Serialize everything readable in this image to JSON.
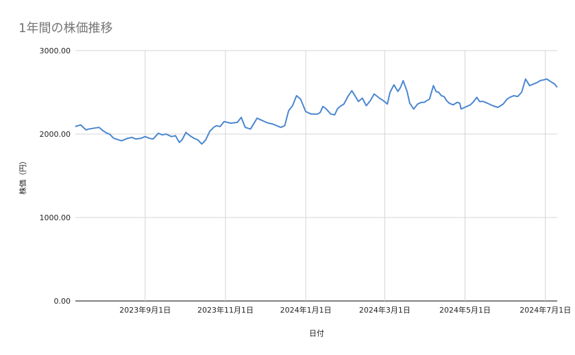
{
  "chart_data": {
    "type": "line",
    "title": "1年間の株価推移",
    "xlabel": "日付",
    "ylabel": "株価（円）",
    "ylim": [
      0,
      3000
    ],
    "yticks": [
      "0.00",
      "1000.00",
      "2000.00",
      "3000.00"
    ],
    "ytick_values": [
      0,
      1000,
      2000,
      3000
    ],
    "xlim": [
      "2023-07-10",
      "2024-07-10"
    ],
    "xticks": [
      {
        "date": "2023-09-01",
        "label": "2023年9月1日"
      },
      {
        "date": "2023-11-01",
        "label": "2023年11月1日"
      },
      {
        "date": "2024-01-01",
        "label": "2024年1月1日"
      },
      {
        "date": "2024-03-01",
        "label": "2024年3月1日"
      },
      {
        "date": "2024-05-01",
        "label": "2024年5月1日"
      },
      {
        "date": "2024-07-01",
        "label": "2024年7月1日"
      }
    ],
    "grid": true,
    "series": [
      {
        "color": "#4a86d0",
        "x": [
          "2023-07-10",
          "2023-07-14",
          "2023-07-18",
          "2023-07-20",
          "2023-07-28",
          "2023-07-31",
          "2023-08-03",
          "2023-08-05",
          "2023-08-08",
          "2023-08-14",
          "2023-08-19",
          "2023-08-22",
          "2023-08-25",
          "2023-08-29",
          "2023-09-01",
          "2023-09-04",
          "2023-09-07",
          "2023-09-11",
          "2023-09-14",
          "2023-09-17",
          "2023-09-21",
          "2023-09-24",
          "2023-09-27",
          "2023-09-29",
          "2023-10-02",
          "2023-10-05",
          "2023-10-08",
          "2023-10-11",
          "2023-10-14",
          "2023-10-17",
          "2023-10-20",
          "2023-10-23",
          "2023-10-25",
          "2023-10-28",
          "2023-10-31",
          "2023-11-05",
          "2023-11-10",
          "2023-11-13",
          "2023-11-16",
          "2023-11-20",
          "2023-11-25",
          "2023-11-28",
          "2023-12-02",
          "2023-12-04",
          "2023-12-07",
          "2023-12-10",
          "2023-12-13",
          "2023-12-16",
          "2023-12-19",
          "2023-12-22",
          "2023-12-25",
          "2023-12-28",
          "2024-01-01",
          "2024-01-05",
          "2024-01-10",
          "2024-01-12",
          "2024-01-14",
          "2024-01-16",
          "2024-01-20",
          "2024-01-23",
          "2024-01-25",
          "2024-01-27",
          "2024-01-30",
          "2024-02-02",
          "2024-02-05",
          "2024-02-07",
          "2024-02-10",
          "2024-02-13",
          "2024-02-16",
          "2024-02-19",
          "2024-02-22",
          "2024-02-26",
          "2024-02-29",
          "2024-03-03",
          "2024-03-05",
          "2024-03-08",
          "2024-03-11",
          "2024-03-13",
          "2024-03-15",
          "2024-03-18",
          "2024-03-20",
          "2024-03-23",
          "2024-03-26",
          "2024-03-29",
          "2024-03-31",
          "2024-04-02",
          "2024-04-04",
          "2024-04-07",
          "2024-04-09",
          "2024-04-11",
          "2024-04-13",
          "2024-04-15",
          "2024-04-17",
          "2024-04-19",
          "2024-04-22",
          "2024-04-25",
          "2024-04-27",
          "2024-04-28",
          "2024-05-05",
          "2024-05-07",
          "2024-05-10",
          "2024-05-12",
          "2024-05-15",
          "2024-05-18",
          "2024-05-22",
          "2024-05-26",
          "2024-05-30",
          "2024-06-02",
          "2024-06-04",
          "2024-06-07",
          "2024-06-10",
          "2024-06-13",
          "2024-06-16",
          "2024-06-19",
          "2024-06-22",
          "2024-06-25",
          "2024-06-27",
          "2024-06-30",
          "2024-07-02",
          "2024-07-04",
          "2024-07-06",
          "2024-07-08",
          "2024-07-09",
          "2024-07-10"
        ],
        "y": [
          2090,
          2110,
          2050,
          2060,
          2080,
          2040,
          2010,
          2000,
          1950,
          1920,
          1950,
          1960,
          1940,
          1950,
          1970,
          1950,
          1940,
          2010,
          1990,
          2000,
          1970,
          1980,
          1900,
          1930,
          2020,
          1980,
          1950,
          1930,
          1880,
          1930,
          2030,
          2080,
          2100,
          2090,
          2150,
          2130,
          2140,
          2200,
          2080,
          2060,
          2190,
          2170,
          2140,
          2130,
          2120,
          2100,
          2080,
          2100,
          2280,
          2340,
          2460,
          2420,
          2270,
          2240,
          2240,
          2260,
          2330,
          2310,
          2240,
          2230,
          2300,
          2330,
          2360,
          2450,
          2520,
          2470,
          2390,
          2430,
          2340,
          2400,
          2480,
          2430,
          2400,
          2360,
          2500,
          2590,
          2510,
          2560,
          2640,
          2510,
          2370,
          2300,
          2360,
          2380,
          2380,
          2400,
          2420,
          2580,
          2510,
          2500,
          2460,
          2450,
          2400,
          2370,
          2350,
          2380,
          2370,
          2300,
          2350,
          2380,
          2440,
          2390,
          2390,
          2370,
          2340,
          2320,
          2360,
          2420,
          2440,
          2460,
          2450,
          2500,
          2660,
          2580,
          2600,
          2620,
          2640,
          2650,
          2660,
          2640,
          2620,
          2600,
          2580,
          2560
        ]
      }
    ]
  }
}
